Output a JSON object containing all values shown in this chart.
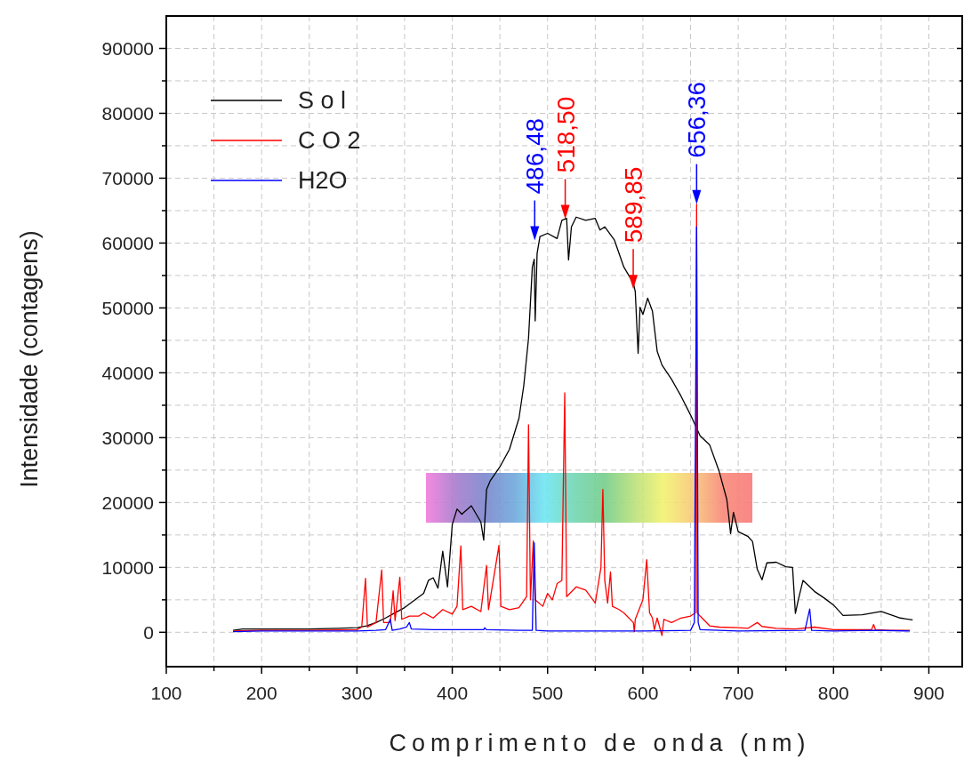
{
  "chart_data": {
    "type": "line",
    "xlabel": "Comprimento de onda (nm)",
    "ylabel": "Intensidade (contagens)",
    "xlim": [
      100,
      935
    ],
    "ylim": [
      -5300,
      95000
    ],
    "xticks": [
      100,
      {
        "value": 150,
        "label": null
      },
      200,
      {
        "value": 250,
        "label": null
      },
      300,
      {
        "value": 350,
        "label": null
      },
      400,
      {
        "value": 450,
        "label": null
      },
      500,
      {
        "value": 550,
        "label": null
      },
      600,
      {
        "value": 650,
        "label": null
      },
      700,
      {
        "value": 750,
        "label": null
      },
      800,
      {
        "value": 850,
        "label": null
      },
      900
    ],
    "yticks": [
      0,
      {
        "value": 5000,
        "label": null
      },
      10000,
      {
        "value": 15000,
        "label": null
      },
      20000,
      {
        "value": 25000,
        "label": null
      },
      30000,
      {
        "value": 35000,
        "label": null
      },
      40000,
      {
        "value": 45000,
        "label": null
      },
      50000,
      {
        "value": 55000,
        "label": null
      },
      60000,
      {
        "value": 65000,
        "label": null
      },
      70000,
      {
        "value": 75000,
        "label": null
      },
      80000,
      {
        "value": 85000,
        "label": null
      },
      90000
    ],
    "grid": true,
    "legend": "top left",
    "marker": "none",
    "line_style": "solid",
    "series": [
      {
        "name": "S o l",
        "color": "#000000",
        "x": [
          170,
          180,
          200,
          250,
          280,
          300,
          310,
          320,
          330,
          340,
          350,
          360,
          370,
          375,
          380,
          385,
          390,
          395,
          400,
          405,
          410,
          420,
          430,
          433,
          436,
          440,
          450,
          460,
          470,
          475,
          480,
          484,
          486,
          487,
          489,
          492,
          500,
          510,
          515,
          520,
          522,
          525,
          530,
          540,
          550,
          555,
          560,
          570,
          580,
          590,
          592,
          595,
          597,
          600,
          605,
          610,
          615,
          620,
          630,
          640,
          650,
          660,
          670,
          680,
          688,
          690,
          692,
          695,
          700,
          710,
          715,
          720,
          725,
          730,
          740,
          750,
          757,
          760,
          763,
          768,
          780,
          790,
          800,
          810,
          830,
          850,
          870,
          883
        ],
        "values": [
          300,
          500,
          500,
          500,
          600,
          700,
          1000,
          1500,
          2200,
          3000,
          3800,
          4900,
          6000,
          8000,
          8400,
          6800,
          12500,
          7000,
          16600,
          19000,
          18200,
          19500,
          17000,
          14200,
          22000,
          23400,
          25500,
          28200,
          33000,
          38000,
          45300,
          56300,
          57500,
          48000,
          58400,
          61000,
          61500,
          60700,
          63500,
          63800,
          57400,
          62500,
          64000,
          63500,
          63800,
          62000,
          62500,
          60500,
          56300,
          53800,
          52500,
          43000,
          50100,
          49000,
          51500,
          49500,
          43300,
          41200,
          39000,
          36400,
          33500,
          30300,
          28900,
          24800,
          20500,
          18000,
          15200,
          18500,
          15500,
          14800,
          14000,
          9700,
          8100,
          10700,
          10800,
          10100,
          10000,
          2900,
          5000,
          8000,
          6300,
          5300,
          4200,
          2600,
          2700,
          3200,
          2200,
          1900
        ]
      },
      {
        "name": "C O 2",
        "color": "#ff0000",
        "x": [
          170,
          200,
          250,
          300,
          305,
          309,
          311,
          320,
          326,
          328,
          335,
          338,
          340,
          345,
          347,
          355,
          365,
          370,
          380,
          390,
          400,
          405,
          409,
          411,
          420,
          430,
          436,
          438,
          449,
          451,
          460,
          470,
          478,
          480,
          482,
          485,
          487,
          495,
          500,
          505,
          510,
          515,
          518,
          520,
          530,
          540,
          550,
          556,
          558,
          560,
          563,
          566,
          568,
          575,
          580,
          590,
          591,
          592,
          600,
          604,
          607,
          610,
          612,
          615,
          620,
          622,
          630,
          640,
          650,
          655,
          656.36,
          657,
          660,
          670,
          680,
          700,
          710,
          720,
          725,
          740,
          760,
          780,
          800,
          840,
          842,
          844,
          860,
          880
        ],
        "values": [
          200,
          300,
          300,
          400,
          800,
          8300,
          800,
          1500,
          9600,
          1500,
          1500,
          6400,
          1800,
          8500,
          2000,
          2500,
          2500,
          3000,
          2200,
          3500,
          2800,
          4000,
          13300,
          3500,
          4000,
          3200,
          10300,
          3500,
          13400,
          4000,
          3500,
          3800,
          5500,
          32000,
          5000,
          14100,
          5000,
          4000,
          6000,
          5000,
          7500,
          8000,
          36900,
          5500,
          7000,
          6500,
          4500,
          10000,
          22000,
          8000,
          4500,
          9300,
          4000,
          3500,
          3000,
          1500,
          100,
          2000,
          5000,
          11200,
          3000,
          2200,
          400,
          2200,
          -500,
          2000,
          1500,
          2200,
          2500,
          3000,
          66000,
          3000,
          2500,
          1000,
          800,
          700,
          600,
          1500,
          900,
          600,
          500,
          800,
          400,
          400,
          1200,
          400,
          300,
          300
        ]
      },
      {
        "name": "H2O",
        "color": "#0000ff",
        "x": [
          170,
          200,
          250,
          300,
          320,
          330,
          335,
          337,
          345,
          352,
          355,
          357,
          380,
          400,
          433,
          434,
          436,
          470,
          484,
          486,
          488,
          500,
          600,
          650,
          654,
          656.36,
          658,
          660,
          700,
          770,
          775,
          777,
          800,
          842,
          880
        ],
        "values": [
          100,
          200,
          200,
          200,
          300,
          400,
          2000,
          300,
          500,
          800,
          1500,
          500,
          400,
          400,
          400,
          700,
          400,
          300,
          300,
          13800,
          300,
          200,
          200,
          300,
          1500,
          62500,
          1500,
          400,
          200,
          300,
          3600,
          300,
          200,
          300,
          200
        ]
      }
    ],
    "annotations": [
      {
        "text": "486,48",
        "x": 486.48,
        "y": 60400
      },
      {
        "text": "518,50",
        "x": 518.5,
        "y": 63700
      },
      {
        "text": "589,85",
        "x": 589.85,
        "y": 52900
      },
      {
        "text": "656,36",
        "x": 656.36,
        "y": 66000
      }
    ]
  }
}
